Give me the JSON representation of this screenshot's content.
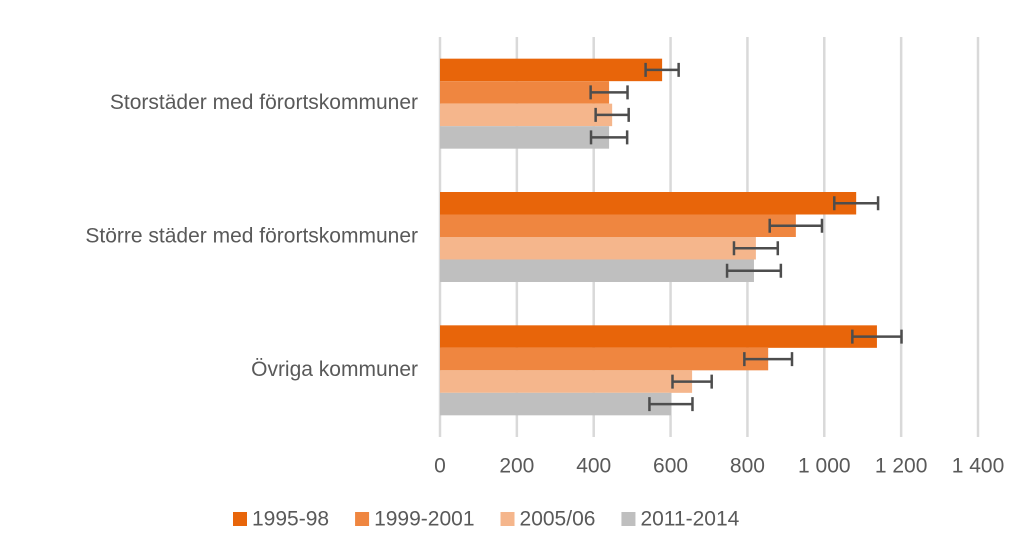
{
  "chart_data": {
    "type": "hbar",
    "categories": [
      "Storstäder med förortskommuner",
      "Större städer med förortskommuner",
      "Övriga kommuner"
    ],
    "series": [
      {
        "name": "1995-98",
        "color": "#e8650a",
        "values": [
          578,
          1083,
          1137
        ],
        "errors": [
          43,
          57,
          64
        ]
      },
      {
        "name": "1999-2001",
        "color": "#ef8640",
        "values": [
          440,
          926,
          854
        ],
        "errors": [
          48,
          68,
          62
        ]
      },
      {
        "name": "2005/06",
        "color": "#f5b68c",
        "values": [
          448,
          822,
          656
        ],
        "errors": [
          43,
          57,
          51
        ]
      },
      {
        "name": "2011-2014",
        "color": "#bfbfbf",
        "values": [
          440,
          817,
          601
        ],
        "errors": [
          47,
          70,
          56
        ]
      }
    ],
    "xlim": [
      0,
      1400
    ],
    "xticks": [
      0,
      200,
      400,
      600,
      800,
      {
        "value": 1000,
        "label": "1 000"
      },
      {
        "value": 1200,
        "label": "1 200"
      },
      {
        "value": 1400,
        "label": "1 400"
      }
    ],
    "grid": true,
    "legend": "bottom",
    "error_color": "#4d4d4d"
  }
}
